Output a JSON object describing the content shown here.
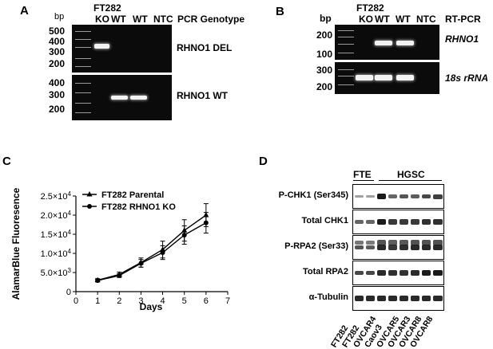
{
  "panels": {
    "a": {
      "letter": "A"
    },
    "b": {
      "letter": "B"
    },
    "c": {
      "letter": "C"
    },
    "d": {
      "letter": "D"
    }
  },
  "panel_a": {
    "cell_line": "FT282",
    "bp_label": "bp",
    "lanes": [
      "KO",
      "WT",
      "WT",
      "NTC"
    ],
    "assay": "PCR Genotype",
    "gel1": {
      "label": "RHNO1 DEL",
      "ladder": [
        "500",
        "400",
        "300",
        "200"
      ]
    },
    "gel2": {
      "label": "RHNO1 WT",
      "ladder": [
        "400",
        "300",
        "200"
      ]
    }
  },
  "panel_b": {
    "cell_line": "FT282",
    "bp_label": "bp",
    "lanes": [
      "KO",
      "WT",
      "WT",
      "NTC"
    ],
    "assay": "RT-PCR",
    "gel1": {
      "label": "RHNO1",
      "ladder": [
        "200",
        "100"
      ]
    },
    "gel2": {
      "label": "18s rRNA",
      "ladder": [
        "300",
        "200"
      ]
    }
  },
  "chart_data": {
    "type": "line",
    "xlabel": "Days",
    "ylabel": "AlamarBlue Fluoresence",
    "xlim": [
      0,
      7
    ],
    "ylim": [
      0,
      25000
    ],
    "x_ticks": [
      "0",
      "1",
      "2",
      "3",
      "4",
      "5",
      "6",
      "7"
    ],
    "y_ticks": [
      {
        "mantissa": "0",
        "exp": ""
      },
      {
        "mantissa": "5.0×10",
        "exp": "3"
      },
      {
        "mantissa": "1.0×10",
        "exp": "4"
      },
      {
        "mantissa": "1.5×10",
        "exp": "4"
      },
      {
        "mantissa": "2.0×10",
        "exp": "4"
      },
      {
        "mantissa": "2.5×10",
        "exp": "4"
      }
    ],
    "legend_position": "top-left",
    "series": [
      {
        "name": "FT282 Parental",
        "marker": "triangle",
        "x": [
          1,
          2,
          3,
          4,
          5,
          6
        ],
        "y": [
          3000,
          4500,
          7600,
          11000,
          16000,
          20000
        ],
        "err": [
          400,
          600,
          1200,
          2200,
          2800,
          3000
        ]
      },
      {
        "name": "FT282 RHNO1 KO",
        "marker": "circle",
        "x": [
          1,
          2,
          3,
          4,
          5,
          6
        ],
        "y": [
          2900,
          4200,
          7400,
          10200,
          14800,
          18000
        ],
        "err": [
          350,
          500,
          1000,
          1800,
          2400,
          2700
        ]
      }
    ]
  },
  "panel_d": {
    "group1": "FTE",
    "group2": "HGSC",
    "rows": [
      "P-CHK1 (Ser345)",
      "Total CHK1",
      "P-RPA2 (Ser33)",
      "Total RPA2",
      "α-Tubulin"
    ],
    "samples": [
      "FT282",
      "FT282",
      "OVCAR4",
      "Caov3",
      "OVCAR5",
      "OVCAR3",
      "OVCAR8",
      "OVCAR8"
    ]
  }
}
